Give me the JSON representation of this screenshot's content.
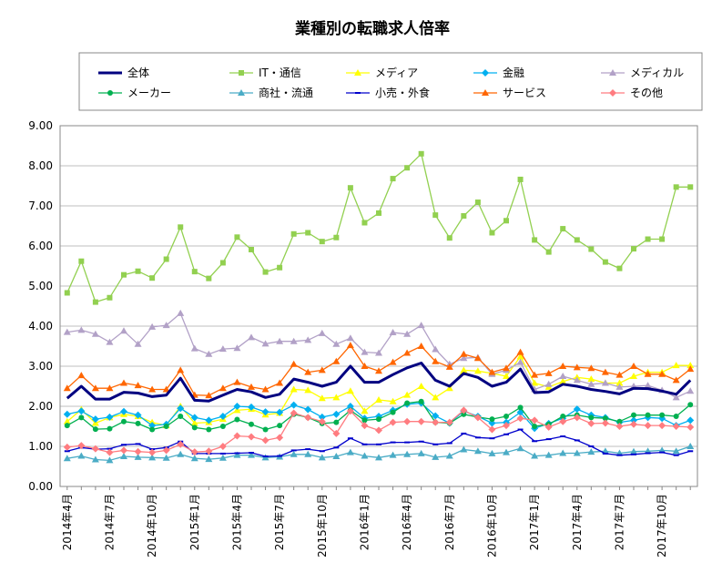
{
  "chart_data": {
    "type": "line",
    "title": "業種別の転職求人倍率",
    "xlabel": "",
    "ylabel": "",
    "ylim": [
      0,
      9
    ],
    "yticks": [
      "0.00",
      "1.00",
      "2.00",
      "3.00",
      "4.00",
      "5.00",
      "6.00",
      "7.00",
      "8.00",
      "9.00"
    ],
    "grid": "horizontal",
    "legend_position": "top",
    "x": [
      "2014年4月",
      "2014年5月",
      "2014年6月",
      "2014年7月",
      "2014年8月",
      "2014年9月",
      "2014年10月",
      "2014年11月",
      "2014年12月",
      "2015年1月",
      "2015年2月",
      "2015年3月",
      "2015年4月",
      "2015年5月",
      "2015年6月",
      "2015年7月",
      "2015年8月",
      "2015年9月",
      "2015年10月",
      "2015年11月",
      "2015年12月",
      "2016年1月",
      "2016年2月",
      "2016年3月",
      "2016年4月",
      "2016年5月",
      "2016年6月",
      "2016年7月",
      "2016年8月",
      "2016年9月",
      "2016年10月",
      "2016年11月",
      "2016年12月",
      "2017年1月",
      "2017年2月",
      "2017年3月",
      "2017年4月",
      "2017年5月",
      "2017年6月",
      "2017年7月",
      "2017年8月",
      "2017年9月",
      "2017年10月",
      "2017年11月",
      "2017年12月"
    ],
    "x_tick_labels": [
      "2014年4月",
      "2014年7月",
      "2014年10月",
      "2015年1月",
      "2015年4月",
      "2015年7月",
      "2015年10月",
      "2016年1月",
      "2016年4月",
      "2016年7月",
      "2016年10月",
      "2017年1月",
      "2017年4月",
      "2017年7月",
      "2017年10月"
    ],
    "series": [
      {
        "name": "全体",
        "color": "#000080",
        "marker": "none",
        "values": [
          2.2,
          2.5,
          2.18,
          2.18,
          2.35,
          2.33,
          2.24,
          2.28,
          2.7,
          2.15,
          2.13,
          2.28,
          2.42,
          2.36,
          2.22,
          2.3,
          2.68,
          2.6,
          2.5,
          2.6,
          3.0,
          2.6,
          2.6,
          2.79,
          2.96,
          3.08,
          2.65,
          2.5,
          2.82,
          2.72,
          2.5,
          2.6,
          2.93,
          2.34,
          2.36,
          2.55,
          2.5,
          2.42,
          2.37,
          2.31,
          2.45,
          2.44,
          2.38,
          2.3,
          2.65
        ]
      },
      {
        "name": "IT・通信",
        "color": "#92D050",
        "marker": "square",
        "values": [
          4.83,
          5.62,
          4.6,
          4.71,
          5.28,
          5.37,
          5.2,
          5.67,
          6.47,
          5.36,
          5.19,
          5.58,
          6.22,
          5.91,
          5.35,
          5.46,
          6.3,
          6.33,
          6.11,
          6.21,
          7.45,
          6.58,
          6.82,
          7.68,
          7.95,
          8.3,
          6.77,
          6.2,
          6.75,
          7.09,
          6.33,
          6.63,
          7.66,
          6.15,
          5.85,
          6.43,
          6.15,
          5.92,
          5.6,
          5.44,
          5.93,
          6.17,
          6.17,
          7.47,
          7.47
        ]
      },
      {
        "name": "メディア",
        "color": "#FFFF00",
        "marker": "triangle",
        "values": [
          1.62,
          1.92,
          1.58,
          1.72,
          1.8,
          1.75,
          1.6,
          1.52,
          2.0,
          1.58,
          1.6,
          1.68,
          1.9,
          1.93,
          1.79,
          1.83,
          2.42,
          2.4,
          2.2,
          2.22,
          2.38,
          1.88,
          2.16,
          2.12,
          2.28,
          2.5,
          2.22,
          2.45,
          2.9,
          2.88,
          2.82,
          2.75,
          3.24,
          2.58,
          2.48,
          2.62,
          2.72,
          2.68,
          2.58,
          2.58,
          2.75,
          2.85,
          2.85,
          3.02,
          3.02
        ]
      },
      {
        "name": "金融",
        "color": "#00B0F0",
        "marker": "diamond",
        "values": [
          1.8,
          1.88,
          1.68,
          1.73,
          1.87,
          1.78,
          1.52,
          1.55,
          1.95,
          1.72,
          1.65,
          1.75,
          2.0,
          1.98,
          1.86,
          1.85,
          2.03,
          1.92,
          1.73,
          1.8,
          2.0,
          1.7,
          1.75,
          1.9,
          2.05,
          2.08,
          1.76,
          1.58,
          1.88,
          1.75,
          1.58,
          1.6,
          1.85,
          1.45,
          1.57,
          1.7,
          1.93,
          1.78,
          1.72,
          1.6,
          1.65,
          1.72,
          1.7,
          1.52,
          1.65
        ]
      },
      {
        "name": "メディカル",
        "color": "#B2A1C7",
        "marker": "triangle",
        "values": [
          3.85,
          3.9,
          3.8,
          3.6,
          3.88,
          3.55,
          3.98,
          4.02,
          4.32,
          3.44,
          3.3,
          3.43,
          3.45,
          3.72,
          3.56,
          3.62,
          3.62,
          3.65,
          3.82,
          3.55,
          3.7,
          3.35,
          3.33,
          3.84,
          3.8,
          4.02,
          3.42,
          3.05,
          3.2,
          3.22,
          2.8,
          2.9,
          3.1,
          2.42,
          2.55,
          2.75,
          2.65,
          2.55,
          2.58,
          2.48,
          2.5,
          2.52,
          2.4,
          2.22,
          2.38
        ]
      },
      {
        "name": "メーカー",
        "color": "#00B050",
        "marker": "circle",
        "values": [
          1.52,
          1.72,
          1.43,
          1.44,
          1.62,
          1.57,
          1.42,
          1.5,
          1.75,
          1.47,
          1.42,
          1.5,
          1.67,
          1.55,
          1.42,
          1.52,
          1.8,
          1.72,
          1.57,
          1.6,
          1.9,
          1.65,
          1.68,
          1.85,
          2.08,
          2.12,
          1.6,
          1.58,
          1.8,
          1.73,
          1.68,
          1.75,
          1.97,
          1.5,
          1.55,
          1.75,
          1.78,
          1.72,
          1.7,
          1.62,
          1.78,
          1.78,
          1.78,
          1.75,
          2.04
        ]
      },
      {
        "name": "商社・流通",
        "color": "#4BACC6",
        "marker": "triangle",
        "values": [
          0.7,
          0.76,
          0.67,
          0.65,
          0.75,
          0.73,
          0.72,
          0.71,
          0.8,
          0.7,
          0.68,
          0.71,
          0.78,
          0.78,
          0.72,
          0.74,
          0.8,
          0.8,
          0.72,
          0.75,
          0.85,
          0.76,
          0.72,
          0.78,
          0.8,
          0.82,
          0.73,
          0.76,
          0.92,
          0.88,
          0.82,
          0.85,
          0.95,
          0.76,
          0.78,
          0.83,
          0.83,
          0.86,
          0.88,
          0.83,
          0.87,
          0.88,
          0.9,
          0.88,
          1.0
        ]
      },
      {
        "name": "小売・外食",
        "color": "#0000CC",
        "marker": "dash",
        "values": [
          0.88,
          0.97,
          0.93,
          0.94,
          1.04,
          1.06,
          0.93,
          0.97,
          1.12,
          0.82,
          0.82,
          0.82,
          0.83,
          0.84,
          0.75,
          0.76,
          0.9,
          0.93,
          0.88,
          0.97,
          1.2,
          1.05,
          1.05,
          1.1,
          1.1,
          1.12,
          1.05,
          1.08,
          1.32,
          1.22,
          1.2,
          1.3,
          1.42,
          1.13,
          1.18,
          1.25,
          1.15,
          1.0,
          0.82,
          0.78,
          0.8,
          0.83,
          0.85,
          0.78,
          0.88
        ]
      },
      {
        "name": "サービス",
        "color": "#FF6600",
        "marker": "triangle",
        "values": [
          2.45,
          2.77,
          2.45,
          2.45,
          2.58,
          2.52,
          2.42,
          2.42,
          2.9,
          2.28,
          2.27,
          2.45,
          2.6,
          2.48,
          2.42,
          2.58,
          3.05,
          2.85,
          2.9,
          3.12,
          3.52,
          3.0,
          2.88,
          3.1,
          3.33,
          3.5,
          3.12,
          2.98,
          3.3,
          3.2,
          2.85,
          2.95,
          3.35,
          2.78,
          2.82,
          3.0,
          2.97,
          2.95,
          2.85,
          2.78,
          3.0,
          2.8,
          2.8,
          2.65,
          2.93
        ]
      },
      {
        "name": "その他",
        "color": "#FF7C80",
        "marker": "diamond",
        "values": [
          0.98,
          1.02,
          0.94,
          0.85,
          0.9,
          0.87,
          0.85,
          0.9,
          1.05,
          0.86,
          0.88,
          1.0,
          1.26,
          1.24,
          1.15,
          1.22,
          1.83,
          1.72,
          1.62,
          1.32,
          1.88,
          1.52,
          1.4,
          1.6,
          1.62,
          1.62,
          1.6,
          1.6,
          1.9,
          1.72,
          1.42,
          1.52,
          1.7,
          1.65,
          1.48,
          1.62,
          1.72,
          1.57,
          1.58,
          1.5,
          1.55,
          1.52,
          1.52,
          1.5,
          1.48
        ]
      }
    ]
  }
}
